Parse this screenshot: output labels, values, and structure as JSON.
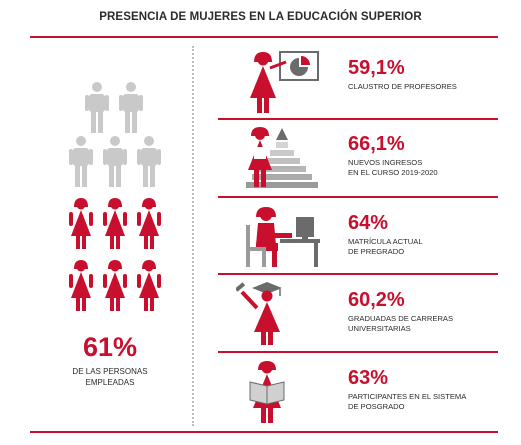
{
  "title": "PRESENCIA DE MUJERES EN LA EDUCACIÓN SUPERIOR",
  "colors": {
    "accent": "#c8102e",
    "muted": "#c9c9c9",
    "ink": "#2b2b2b"
  },
  "employed": {
    "percent": "61%",
    "label_line1": "DE LAS PERSONAS",
    "label_line2": "EMPLEADAS",
    "pictogram": {
      "total": 11,
      "women": 6,
      "men": 5
    }
  },
  "stats": [
    {
      "percent": "59,1%",
      "label_line1": "CLAUSTRO DE PROFESORES",
      "label_line2": "",
      "icon": "teacher-presentation-icon"
    },
    {
      "percent": "66,1%",
      "label_line1": "NUEVOS INGRESOS",
      "label_line2": "EN EL CURSO 2019-2020",
      "icon": "student-stairs-icon"
    },
    {
      "percent": "64%",
      "label_line1": "MATRÍCULA ACTUAL",
      "label_line2": "DE PREGRADO",
      "icon": "student-computer-icon"
    },
    {
      "percent": "60,2%",
      "label_line1": "GRADUADAS DE CARRERAS",
      "label_line2": "UNIVERSITARIAS",
      "icon": "graduate-icon"
    },
    {
      "percent": "63%",
      "label_line1": "PARTICIPANTES EN EL SISTEMA",
      "label_line2": "DE POSGRADO",
      "icon": "reader-icon"
    }
  ]
}
